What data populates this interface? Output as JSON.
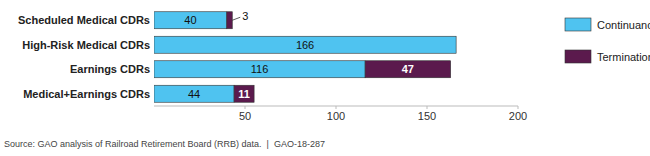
{
  "chart_data": {
    "type": "bar",
    "orientation": "horizontal",
    "stacked": true,
    "data_labels": true,
    "categories": [
      "Scheduled Medical CDRs",
      "High-Risk Medical CDRs",
      "Earnings CDRs",
      "Medical+Earnings CDRs"
    ],
    "series": [
      {
        "name": "Continuance",
        "color": "#4fc3f0",
        "values": [
          40,
          166,
          116,
          44
        ]
      },
      {
        "name": "Termination",
        "color": "#5b1a4d",
        "values": [
          3,
          null,
          47,
          11
        ]
      }
    ],
    "xlim": [
      0,
      200
    ],
    "xticks": [
      50,
      100,
      150,
      200
    ],
    "grid": false,
    "legend": "right",
    "source": "Source: GAO analysis of Railroad Retirement Board (RRB) data.  |  GAO-18-287"
  }
}
